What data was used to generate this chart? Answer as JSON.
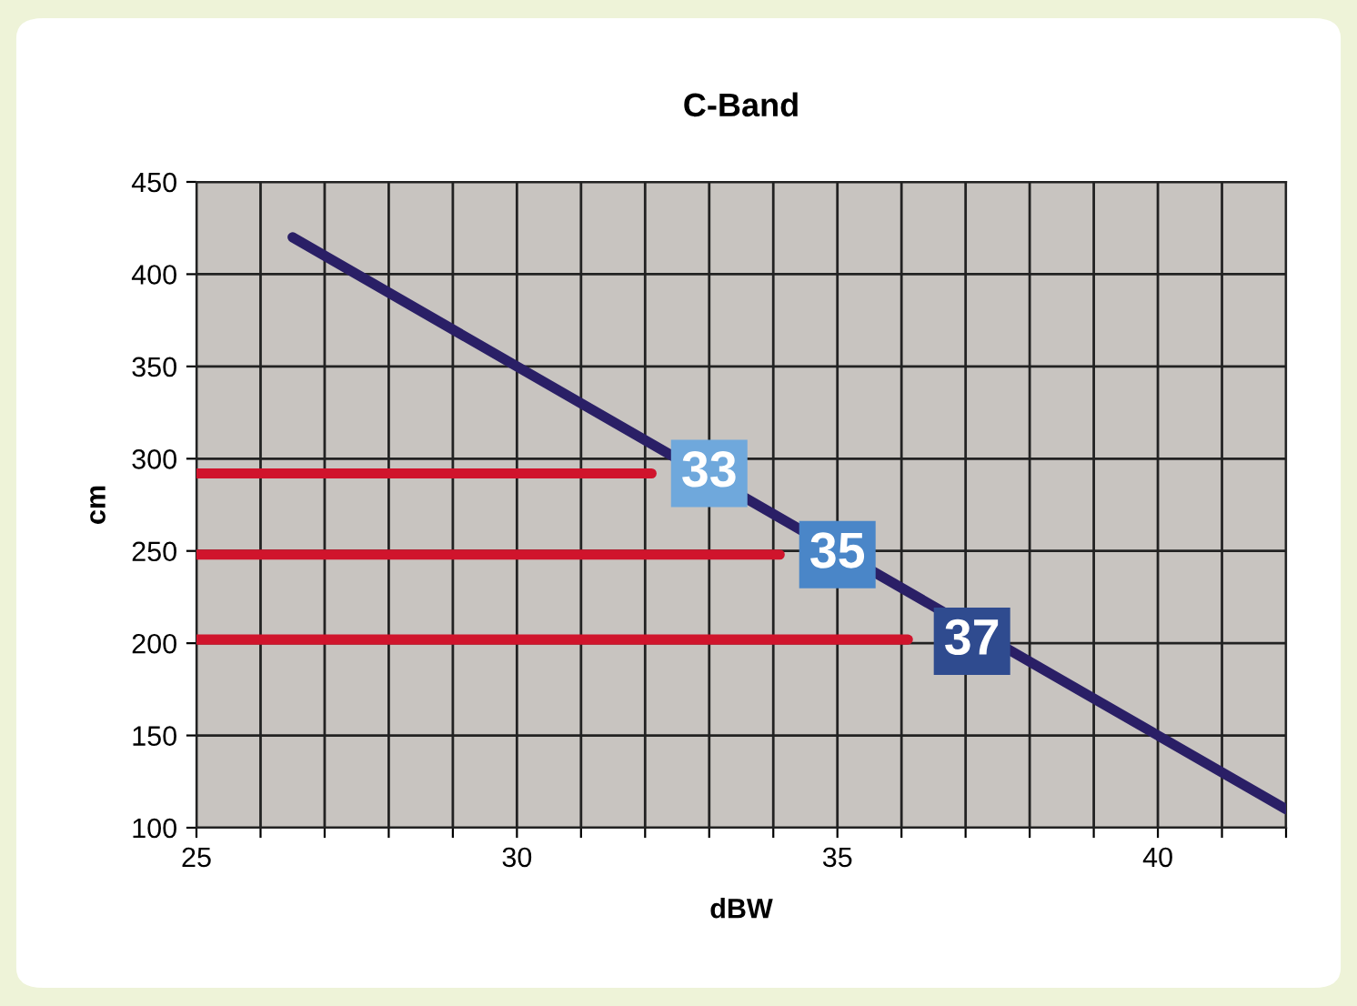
{
  "chart_data": {
    "type": "line",
    "title": "C-Band",
    "xlabel": "dBW",
    "ylabel": "cm",
    "xlim": [
      25,
      42
    ],
    "ylim": [
      100,
      450
    ],
    "xticks": [
      25,
      {
        "value": 26,
        "label": null
      },
      {
        "value": 27,
        "label": null
      },
      {
        "value": 28,
        "label": null
      },
      {
        "value": 29,
        "label": null
      },
      30,
      {
        "value": 31,
        "label": null
      },
      {
        "value": 32,
        "label": null
      },
      {
        "value": 33,
        "label": null
      },
      {
        "value": 34,
        "label": null
      },
      35,
      {
        "value": 36,
        "label": null
      },
      {
        "value": 37,
        "label": null
      },
      {
        "value": 38,
        "label": null
      },
      {
        "value": 39,
        "label": null
      },
      40,
      {
        "value": 41,
        "label": null
      },
      {
        "value": 42,
        "label": null
      }
    ],
    "yticks": [
      100,
      150,
      200,
      250,
      300,
      350,
      400,
      450
    ],
    "grid": true,
    "marker": "none",
    "line_style": "solid",
    "series": [
      {
        "color": "#2a1f66",
        "x": [
          26.5,
          42
        ],
        "values": [
          420,
          110
        ]
      },
      {
        "color": "#d0142c",
        "x": [
          25,
          32.1
        ],
        "values": [
          292,
          292
        ]
      },
      {
        "color": "#d0142c",
        "x": [
          25,
          34.1
        ],
        "values": [
          248,
          248
        ]
      },
      {
        "color": "#d0142c",
        "x": [
          25,
          36.1
        ],
        "values": [
          202,
          202
        ]
      }
    ],
    "annotations": [
      {
        "text": "33",
        "x": 33,
        "y": 292
      },
      {
        "text": "35",
        "x": 35,
        "y": 248
      },
      {
        "text": "37",
        "x": 37.1,
        "y": 201
      }
    ]
  }
}
